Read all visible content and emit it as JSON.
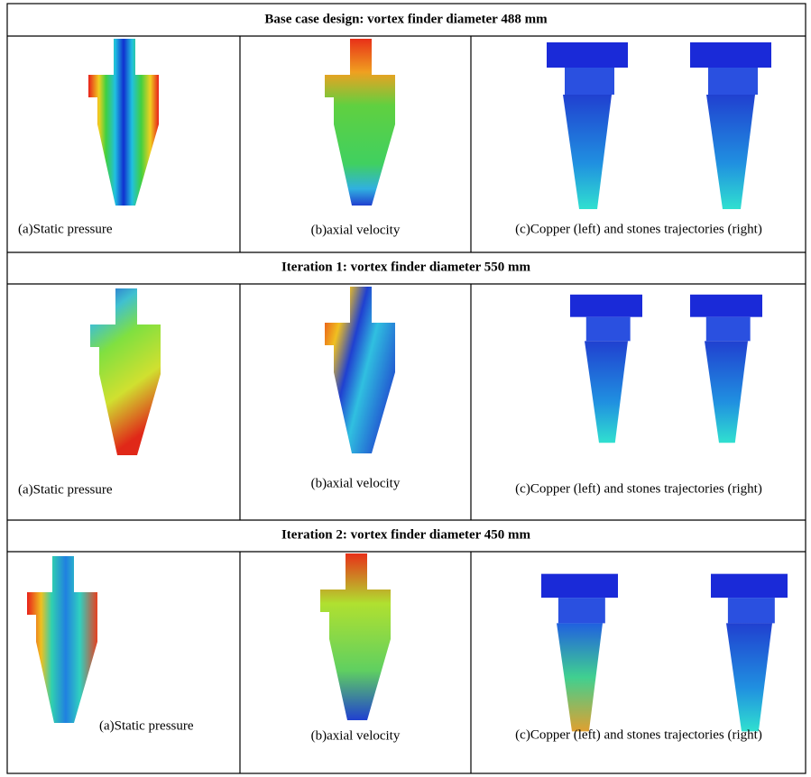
{
  "sections": [
    {
      "title": "Base case design: vortex finder diameter 488 mm",
      "captions": [
        "(a)Static pressure",
        "(b)axial velocity",
        "(c)Copper (left) and stones trajectories (right)"
      ]
    },
    {
      "title": "Iteration 1: vortex finder diameter 550 mm",
      "captions": [
        "(a)Static pressure",
        "(b)axial velocity",
        "(c)Copper (left) and stones trajectories (right)"
      ]
    },
    {
      "title": "Iteration 2: vortex finder diameter 450 mm",
      "captions": [
        "(a)Static pressure",
        "(b)axial velocity",
        "(c)Copper (left) and stones trajectories (right)"
      ]
    }
  ]
}
